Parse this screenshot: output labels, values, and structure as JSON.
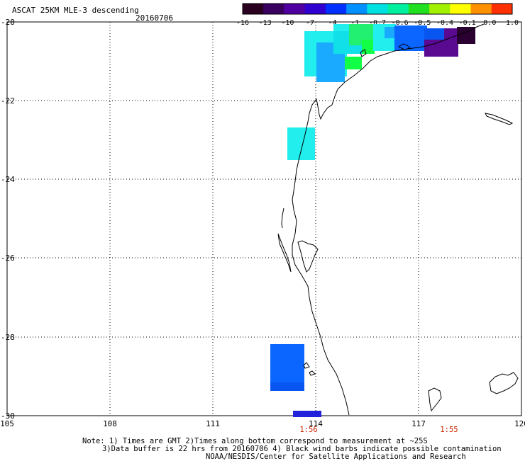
{
  "header": {
    "title": "ASCAT 25KM MLE-3 descending",
    "date": "20160706"
  },
  "colorbar": {
    "labels": [
      "-16",
      "-13",
      "-10",
      "-7",
      "-4",
      "-1",
      "-0.7",
      "-0.6",
      "-0.5",
      "-0.4",
      "-0.1",
      "0.0",
      "1.0"
    ],
    "colors": [
      "#2a0020",
      "#3a0060",
      "#5000a0",
      "#3000d0",
      "#0030ff",
      "#0090ff",
      "#00e0e0",
      "#00f0a0",
      "#20e020",
      "#a0f000",
      "#ffff00",
      "#ff9000",
      "#ff3000"
    ]
  },
  "map": {
    "lon_labels": [
      "105",
      "108",
      "111",
      "114",
      "117",
      "120"
    ],
    "lat_labels": [
      "-20",
      "-22",
      "-24",
      "-26",
      "-28",
      "-30"
    ],
    "time_labels": [
      "1:56",
      "1:55"
    ],
    "colors": {
      "cyan": "#22eeee",
      "cyan2": "#11e0e8",
      "skyblue": "#1aaaff",
      "blue": "#0a66ff",
      "blue2": "#0855f0",
      "royal": "#2222dd",
      "green": "#11ff44",
      "green2": "#22f070",
      "purple": "#5a0a90",
      "darkpurple": "#2a0030"
    }
  },
  "notes": {
    "line1": "Note: 1) Times are GMT 2)Times along bottom correspond to measurement at ~25S",
    "line2": "3)Data buffer is 22 hrs from 20160706 4) Black wind barbs indicate possible contamination",
    "line3": "NOAA/NESDIS/Center for Satellite Applications and Research"
  }
}
